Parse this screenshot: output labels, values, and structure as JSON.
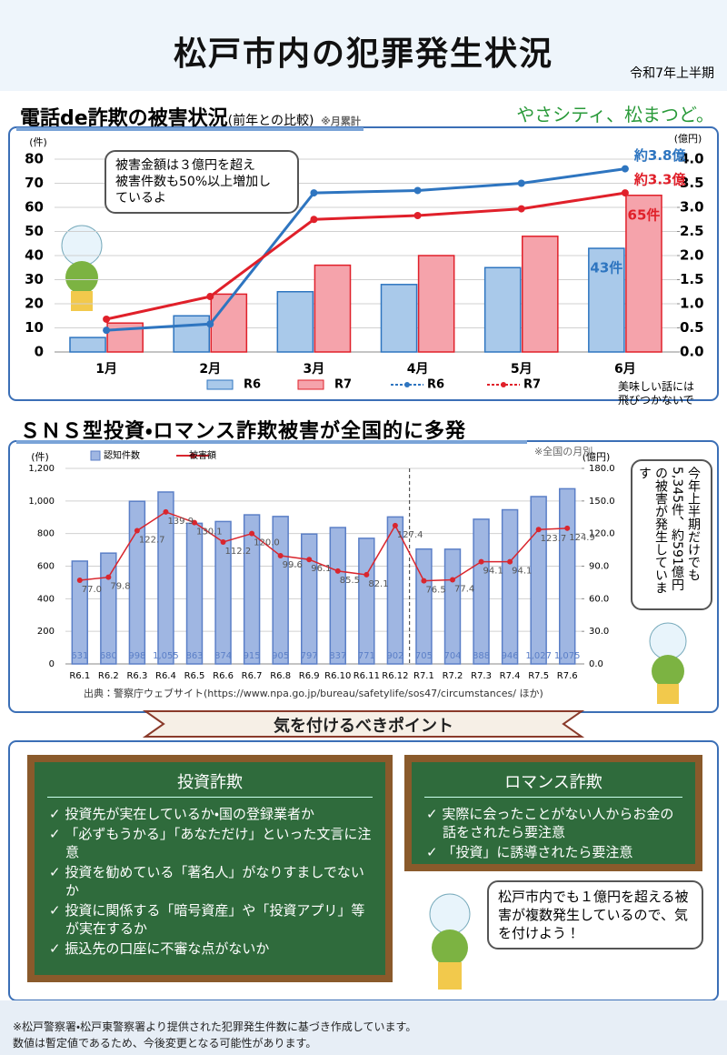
{
  "header": {
    "title": "松戸市内の犯罪発生状況",
    "period": "令和7年上半期",
    "logo": "やさシティ、松まつど。"
  },
  "chart_data": [
    {
      "type": "bar",
      "title": "電話de詐欺の被害状況",
      "subtitle": "(前年との比較)",
      "note": "※月累計",
      "ylabel": "(件)",
      "y2label": "(億円)",
      "categories": [
        "1月",
        "2月",
        "3月",
        "4月",
        "5月",
        "6月"
      ],
      "series": [
        {
          "name": "R6",
          "color": "#a9c9ea",
          "edgecolor": "#2e75c0",
          "values": [
            6,
            15,
            25,
            28,
            35,
            43
          ],
          "value_labels": [
            null,
            null,
            null,
            null,
            null,
            "43件"
          ]
        },
        {
          "name": "R7",
          "color": "#f5a3ab",
          "edgecolor": "#e0202a",
          "values": [
            12,
            24,
            36,
            40,
            48,
            65
          ],
          "value_labels": [
            null,
            null,
            null,
            null,
            null,
            "65件"
          ]
        },
        {
          "name": "R6",
          "color": "#2e75c0",
          "axis": "y2",
          "values": [
            0.45,
            0.58,
            3.3,
            3.35,
            3.5,
            3.8
          ],
          "value_labels": [
            null,
            null,
            null,
            null,
            null,
            "約3.8億"
          ]
        },
        {
          "name": "R7",
          "color": "#e0202a",
          "axis": "y2",
          "values": [
            0.68,
            1.15,
            2.75,
            2.83,
            2.97,
            3.3
          ],
          "value_labels": [
            null,
            null,
            null,
            null,
            null,
            "約3.3億"
          ]
        }
      ],
      "ylim": [
        0,
        80
      ],
      "yticks": [
        0,
        10,
        20,
        30,
        40,
        50,
        60,
        70,
        80
      ],
      "y2lim": [
        0,
        4
      ],
      "y2ticks": [
        {
          "value": 0,
          "label": "0.0"
        },
        0.5,
        {
          "value": 1,
          "label": "1.0"
        },
        1.5,
        {
          "value": 2,
          "label": "2.0"
        },
        2.5,
        {
          "value": 3,
          "label": "3.0"
        },
        3.5,
        {
          "value": 4,
          "label": "4.0"
        }
      ],
      "grid": true
    },
    {
      "type": "bar",
      "title": "ＳＮＳ型投資・ロマンス詐欺被害が全国的に多発",
      "note": "※全国の月別",
      "ylabel": "(件)",
      "y2label": "(億円)",
      "categories": [
        "R6.1",
        "R6.2",
        "R6.3",
        "R6.4",
        "R6.5",
        "R6.6",
        "R6.7",
        "R6.8",
        "R6.9",
        "R6.10",
        "R6.11",
        "R6.12",
        "R7.1",
        "R7.2",
        "R7.3",
        "R7.4",
        "R7.5",
        "R7.6"
      ],
      "series": [
        {
          "name": "認知件数",
          "color": "#9fb6e2",
          "edgecolor": "#5b7fc7",
          "values": [
            631,
            680,
            998,
            1055,
            863,
            874,
            915,
            905,
            797,
            837,
            771,
            902,
            705,
            704,
            888,
            946,
            1027,
            1075
          ],
          "value_labels": [
            "631",
            "680",
            "998",
            "1,055",
            "863",
            "874",
            "915",
            "905",
            "797",
            "837",
            "771",
            "902",
            "705",
            "704",
            "888",
            "946",
            "1,027",
            "1,075"
          ]
        },
        {
          "name": "被害額",
          "color": "#d9262e",
          "axis": "y2",
          "values": [
            77.0,
            79.8,
            122.7,
            139.9,
            130.1,
            112.2,
            120.0,
            99.6,
            96.1,
            85.5,
            82.1,
            127.4,
            76.5,
            77.4,
            94.1,
            94.1,
            123.7,
            124.9
          ],
          "value_labels": [
            "77.0",
            "79.8",
            "122.7",
            "139.9",
            "130.1",
            "112.2",
            "120.0",
            "99.6",
            "96.1",
            "85.5",
            "82.1",
            "127.4",
            "76.5",
            "77.4",
            "94.1",
            "94.1",
            "123.7",
            "124.9"
          ]
        }
      ],
      "ylim": [
        0,
        1200
      ],
      "yticks": [
        0,
        200,
        400,
        600,
        800,
        {
          "value": 1000,
          "label": "1,000"
        },
        {
          "value": 1200,
          "label": "1,200"
        }
      ],
      "y2lim": [
        0,
        180
      ],
      "y2ticks": [
        {
          "value": 0,
          "label": "0.0"
        },
        {
          "value": 30,
          "label": "30.0"
        },
        {
          "value": 60,
          "label": "60.0"
        },
        {
          "value": 90,
          "label": "90.0"
        },
        {
          "value": 120,
          "label": "120.0"
        },
        {
          "value": 150,
          "label": "150.0"
        },
        {
          "value": 180,
          "label": "180.0"
        }
      ],
      "grid": true,
      "source": "出典：警察庁ウェブサイト(https://www.npa.go.jp/bureau/safetylife/sos47/circumstances/ ほか)"
    }
  ],
  "callouts": {
    "phone": [
      "被害金額は３億円を超え",
      "被害件数も50%以上増加し",
      "ているよ"
    ],
    "sns": "今年上半期だけでも5,345件、約591億円の被害が発生しています",
    "mascot": [
      "美味しい話には",
      "飛びつかないで"
    ],
    "local": "松戸市内でも１億円を超える被害が複数発生しているので、気を付けよう！"
  },
  "banner": "気を付けるべきポイント",
  "boards": [
    {
      "title": "投資詐欺",
      "items": [
        "投資先が実在しているか・国の登録業者か",
        "「必ずもうかる」「あなただけ」といった文言に注意",
        "投資を勧めている「著名人」がなりすましでないか",
        "投資に関係する「暗号資産」や「投資アプリ」等が実在するか",
        "振込先の口座に不審な点がないか"
      ]
    },
    {
      "title": "ロマンス詐欺",
      "items": [
        "実際に会ったことがない人からお金の話をされたら要注意",
        "「投資」に誘導されたら要注意"
      ]
    }
  ],
  "footer": [
    "※松戸警察署・松戸東警察署より提供された犯罪発生件数に基づき作成しています。",
    "数値は暫定値であるため、今後変更となる可能性があります。"
  ]
}
